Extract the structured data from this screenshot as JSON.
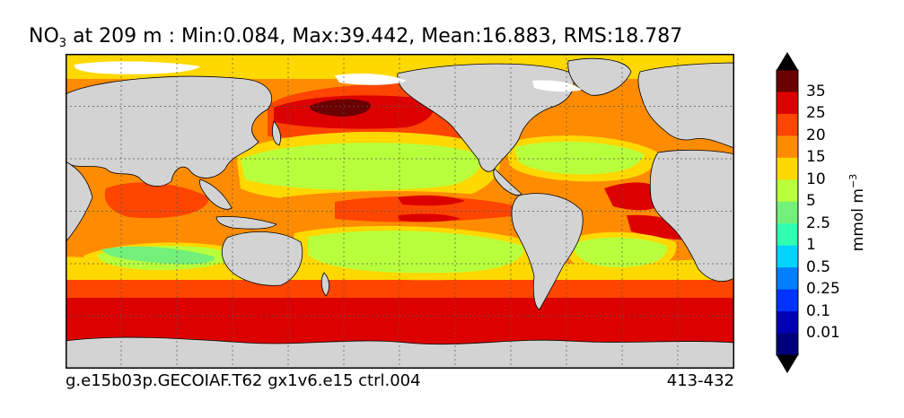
{
  "title": {
    "variable": "NO",
    "subscript": "3",
    "rest": "at 209 m : Min:0.084, Max:39.442, Mean:16.883, RMS:18.787"
  },
  "footer": {
    "case": "g.e15b03p.GECOIAF.T62 gx1v6.e15 ctrl.004",
    "years": "413-432"
  },
  "colorbar": {
    "units": "mmol m",
    "units_exp": "−3",
    "ticks": [
      "35",
      "25",
      "20",
      "15",
      "10",
      "5",
      "2.5",
      "1",
      "0.5",
      "0.25",
      "0.1",
      "0.01"
    ],
    "colors_top_to_bottom": [
      "#6b0000",
      "#dd0000",
      "#ff4500",
      "#ff8c00",
      "#ffd800",
      "#b8ff3c",
      "#72f079",
      "#2fffb0",
      "#00d4ff",
      "#0080ff",
      "#0033ff",
      "#0000b4",
      "#00007a"
    ],
    "over_color": "#000000",
    "under_color": "#000000"
  },
  "map_colors": {
    "land": "#d3d3d3",
    "ice": "#ffffff",
    "coast": "#000000",
    "grid": "#555555"
  }
}
